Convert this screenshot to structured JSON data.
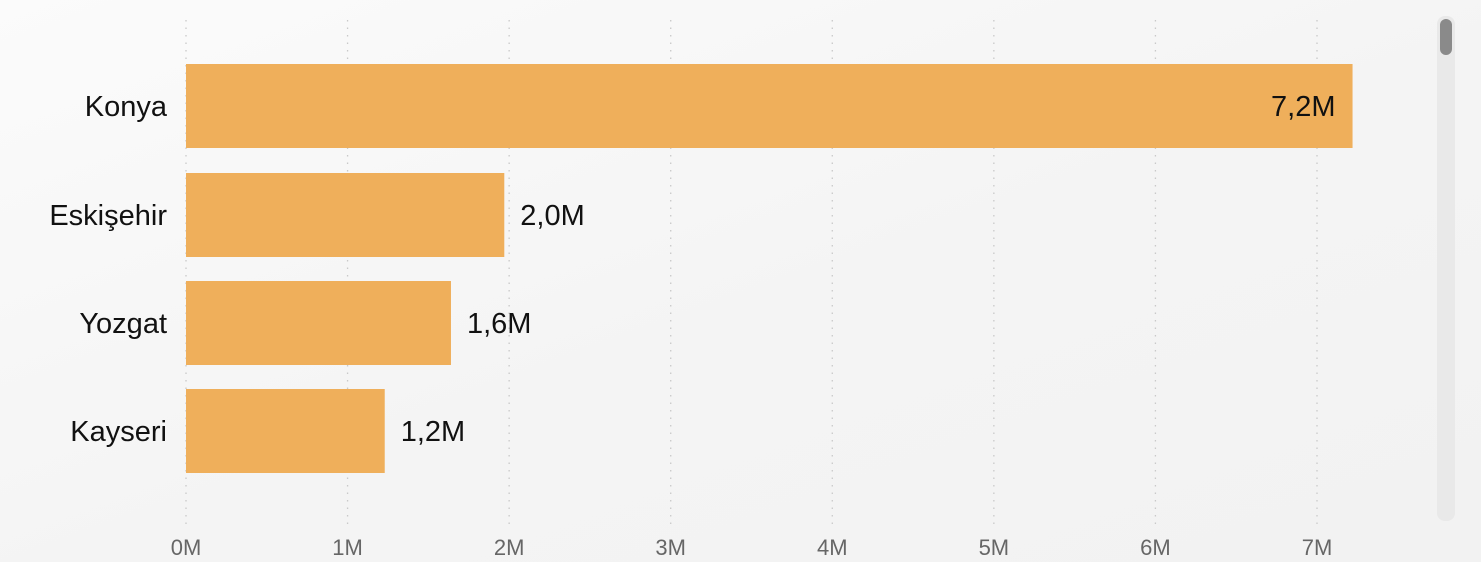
{
  "chart_data": {
    "type": "bar",
    "orientation": "horizontal",
    "categories": [
      "Konya",
      "Eskişehir",
      "Yozgat",
      "Kayseri"
    ],
    "values": [
      7.22,
      1.97,
      1.64,
      1.23
    ],
    "data_labels": [
      "7,2M",
      "2,0M",
      "1,6M",
      "1,2M"
    ],
    "x_tick_labels": [
      "0M",
      "1M",
      "2M",
      "3M",
      "4M",
      "5M",
      "6M",
      "7M"
    ],
    "xlim": [
      0,
      7
    ],
    "grid": "vertical-dotted",
    "title": "",
    "xlabel": "",
    "ylabel": ""
  },
  "colors": {
    "bar": "#efaf5b",
    "grid": "#c9c9c9",
    "category_text": "#111111",
    "data_label_text": "#111111",
    "tick_text": "#666666"
  },
  "scrollbar": {
    "present": true
  }
}
